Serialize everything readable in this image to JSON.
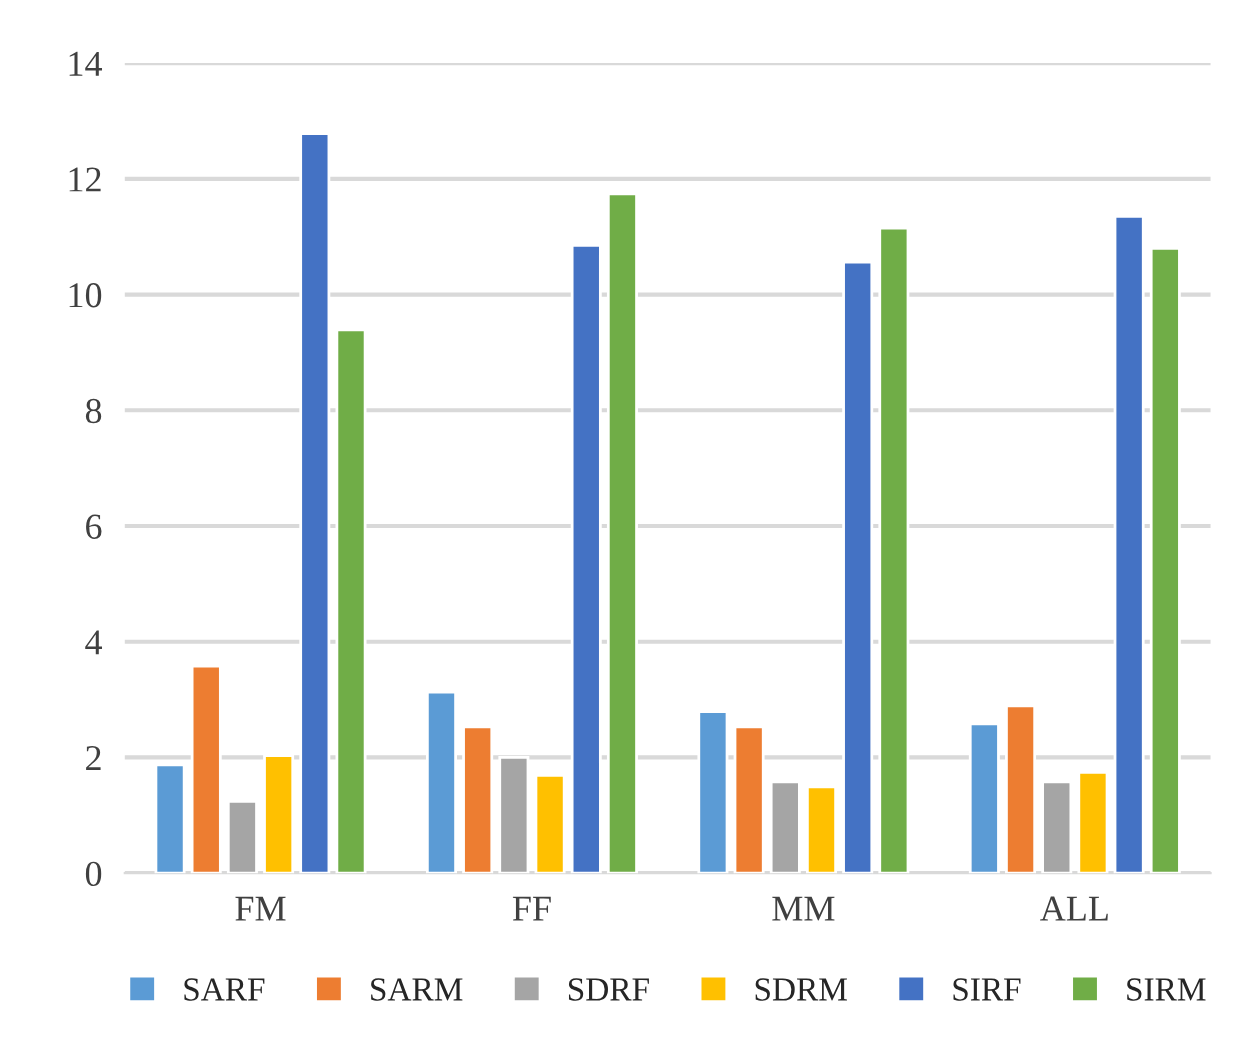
{
  "chart_data": {
    "type": "bar",
    "categories": [
      "FM",
      "FF",
      "MM",
      "ALL"
    ],
    "series": [
      {
        "name": "SARF",
        "color": "#5b9bd5",
        "values": [
          1.87,
          3.13,
          2.79,
          2.58
        ]
      },
      {
        "name": "SARM",
        "color": "#ed7d31",
        "values": [
          3.58,
          2.53,
          2.53,
          2.89
        ]
      },
      {
        "name": "SDRF",
        "color": "#a5a5a5",
        "values": [
          1.24,
          2.0,
          1.58,
          1.58
        ]
      },
      {
        "name": "SDRM",
        "color": "#ffc000",
        "values": [
          2.03,
          1.69,
          1.49,
          1.74
        ]
      },
      {
        "name": "SIRF",
        "color": "#4472c4",
        "values": [
          12.78,
          10.85,
          10.56,
          11.35
        ]
      },
      {
        "name": "SIRM",
        "color": "#70ad47",
        "values": [
          9.39,
          11.74,
          11.15,
          10.8
        ]
      }
    ],
    "ylim": [
      0,
      14
    ],
    "yticks": [
      0,
      2,
      4,
      6,
      8,
      10,
      12,
      14
    ],
    "grid": "y",
    "legend": "bottom"
  }
}
